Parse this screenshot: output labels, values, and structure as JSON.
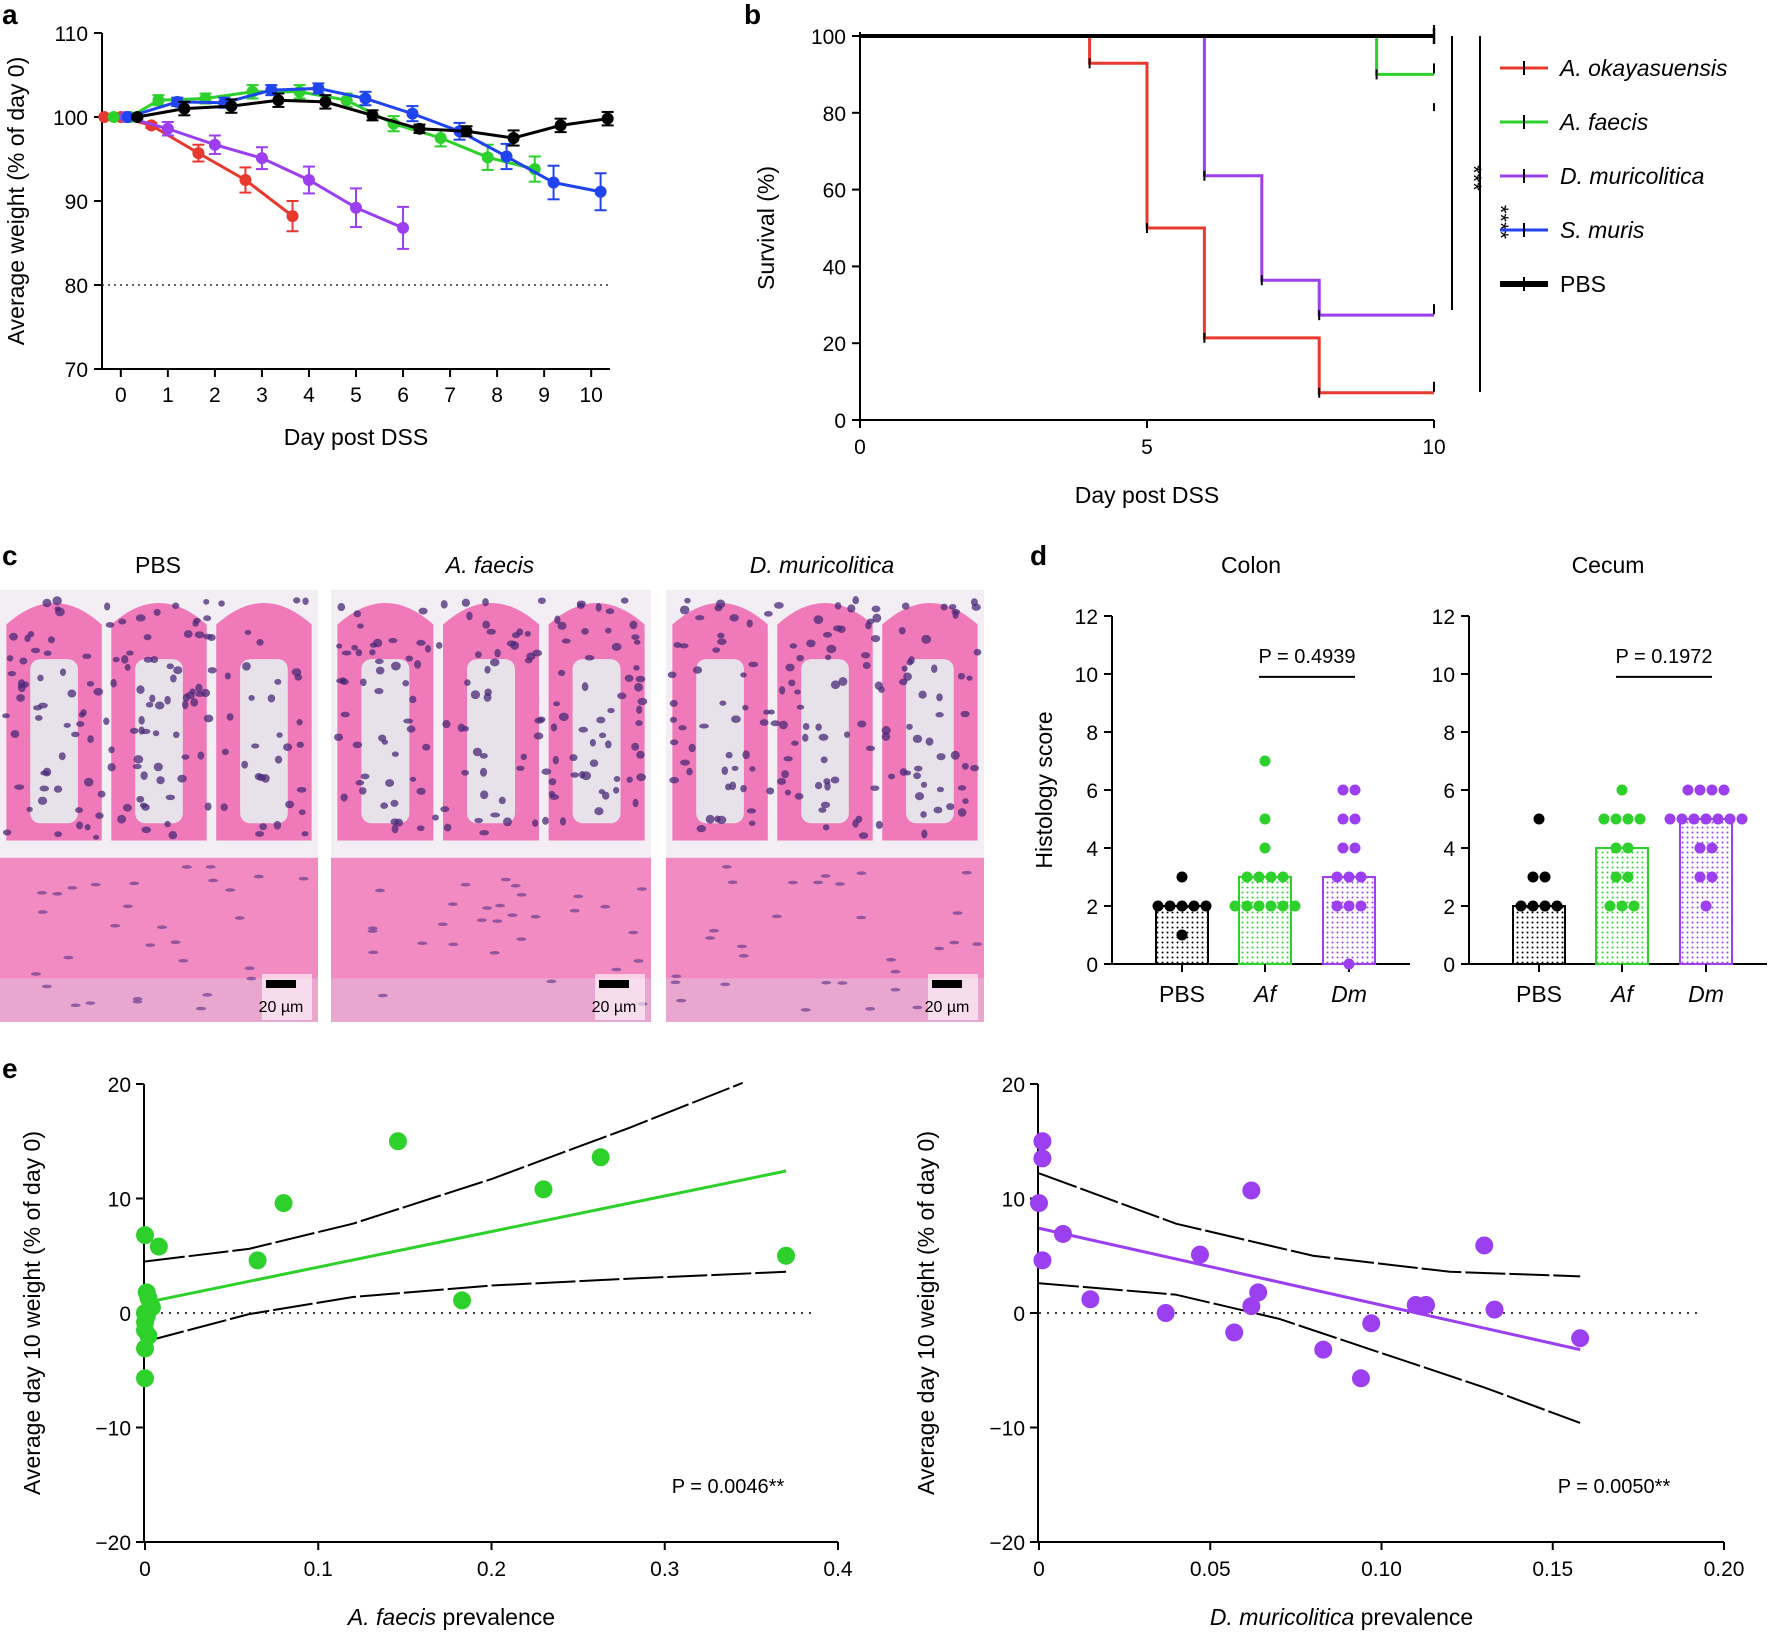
{
  "chart_data": [
    {
      "panel": "a",
      "type": "line",
      "xlabel": "Day post DSS",
      "ylabel": "Average weight (% of day 0)",
      "xlim": [
        -0.4,
        10.4
      ],
      "ylim": [
        70,
        110
      ],
      "xticks": [
        "0",
        "1",
        "2",
        "3",
        "4",
        "5",
        "6",
        "7",
        "8",
        "9",
        "10"
      ],
      "yticks": [
        "70",
        "80",
        "90",
        "100",
        "110"
      ],
      "reference_line": 80,
      "series": [
        {
          "name": "A. okayasuensis",
          "color": "#e8392f",
          "x": [
            -0.35,
            0,
            0.65,
            1.65,
            2.65,
            3.65
          ],
          "y": [
            100,
            100,
            99,
            95.7,
            92.5,
            88.2
          ],
          "err": [
            0,
            0,
            0.3,
            1.0,
            1.5,
            1.8
          ]
        },
        {
          "name": "A. faecis",
          "color": "#2ed12c",
          "x": [
            -0.15,
            0.2,
            0.8,
            1.8,
            2.8,
            3.8,
            4.8,
            5.8,
            6.8,
            7.8,
            8.8
          ],
          "y": [
            100,
            100,
            102,
            102.2,
            103,
            103,
            102,
            99.2,
            97.5,
            95.2,
            93.8
          ],
          "err": [
            0,
            0.2,
            0.6,
            0.6,
            0.8,
            0.8,
            0.8,
            0.9,
            1.0,
            1.5,
            1.5
          ]
        },
        {
          "name": "D. muricolitica",
          "color": "#9b3ff0",
          "x": [
            0.1,
            1.0,
            2.0,
            3.0,
            4.0,
            5.0,
            6.0
          ],
          "y": [
            100,
            98.6,
            96.7,
            95.1,
            92.5,
            89.2,
            86.8
          ],
          "err": [
            0.2,
            0.8,
            1.1,
            1.3,
            1.6,
            2.3,
            2.5
          ]
        },
        {
          "name": "S. muris",
          "color": "#1f44f0",
          "x": [
            0.15,
            1.2,
            2.2,
            3.2,
            4.2,
            5.2,
            6.2,
            7.2,
            8.2,
            9.2,
            10.2
          ],
          "y": [
            100,
            101.8,
            101.7,
            103.2,
            103.4,
            102.2,
            100.4,
            98.3,
            95.3,
            92.2,
            91.1
          ],
          "err": [
            0.2,
            0.5,
            0.6,
            0.6,
            0.6,
            0.8,
            0.9,
            1.0,
            1.5,
            2.0,
            2.2
          ]
        },
        {
          "name": "PBS",
          "color": "#000000",
          "x": [
            0.35,
            1.35,
            2.35,
            3.35,
            4.35,
            5.35,
            6.35,
            7.35,
            8.35,
            9.35,
            10.35
          ],
          "y": [
            100,
            101,
            101.3,
            102,
            101.8,
            100.2,
            98.6,
            98.3,
            97.5,
            99,
            99.8
          ],
          "err": [
            0.2,
            0.8,
            0.8,
            0.8,
            0.8,
            0.6,
            0.5,
            0.6,
            0.9,
            0.8,
            0.8
          ]
        }
      ]
    },
    {
      "panel": "b",
      "type": "line",
      "subtype": "kaplan-meier",
      "xlabel": "Day post DSS",
      "ylabel": "Survival (%)",
      "xlim": [
        0,
        10
      ],
      "ylim": [
        0,
        100
      ],
      "xticks": [
        "0",
        "5",
        "10"
      ],
      "yticks": [
        "0",
        "20",
        "40",
        "60",
        "80",
        "100"
      ],
      "series": [
        {
          "name": "A. okayasuensis",
          "color": "#e8392f",
          "steps": [
            [
              0,
              100
            ],
            [
              4,
              92.9
            ],
            [
              5,
              50
            ],
            [
              6,
              21.4
            ],
            [
              8,
              7.1
            ],
            [
              10,
              7.1
            ]
          ]
        },
        {
          "name": "A. faecis",
          "color": "#2ed12c",
          "steps": [
            [
              0,
              100
            ],
            [
              9,
              90
            ],
            [
              10,
              90
            ]
          ]
        },
        {
          "name": "D. muricolitica",
          "color": "#9b3ff0",
          "steps": [
            [
              0,
              100
            ],
            [
              6,
              63.6
            ],
            [
              7,
              36.4
            ],
            [
              8,
              27.3
            ],
            [
              10,
              27.3
            ]
          ]
        },
        {
          "name": "S. muris",
          "color": "#1f44f0",
          "steps": [
            [
              0,
              100
            ],
            [
              10,
              100
            ]
          ]
        },
        {
          "name": "PBS",
          "color": "#000000",
          "steps": [
            [
              0,
              100
            ],
            [
              10,
              100
            ]
          ]
        }
      ],
      "significance": [
        "***",
        "****"
      ],
      "legend": [
        "A. okayasuensis",
        "A. faecis",
        "D. muricolitica",
        "S. muris",
        "PBS"
      ]
    },
    {
      "panel": "d",
      "type": "bar",
      "subtype": "dot-bar",
      "ylabel": "Histology score",
      "ylim": [
        0,
        12
      ],
      "yticks": [
        "0",
        "2",
        "4",
        "6",
        "8",
        "10",
        "12"
      ],
      "categories": [
        "PBS",
        "Af",
        "Dm"
      ],
      "subplots": [
        {
          "title": "Colon",
          "p_label": "P = 0.4939",
          "bar_values": [
            2,
            3,
            3
          ],
          "points": [
            [
              2,
              2,
              2,
              2,
              2,
              1,
              3
            ],
            [
              2,
              2,
              2,
              2,
              2,
              2,
              3,
              3,
              3,
              3,
              4,
              5,
              7
            ],
            [
              0,
              2,
              2,
              2,
              3,
              3,
              3,
              4,
              4,
              5,
              5,
              6,
              6
            ]
          ]
        },
        {
          "title": "Cecum",
          "p_label": "P = 0.1972",
          "bar_values": [
            2,
            4,
            5
          ],
          "points": [
            [
              2,
              2,
              2,
              2,
              3,
              3,
              5
            ],
            [
              2,
              2,
              2,
              3,
              3,
              4,
              4,
              5,
              5,
              5,
              5,
              6
            ],
            [
              2,
              3,
              3,
              4,
              4,
              5,
              5,
              5,
              5,
              5,
              5,
              5,
              6,
              6,
              6,
              6
            ]
          ]
        }
      ],
      "colors": [
        "#000000",
        "#2ed12c",
        "#9b3ff0"
      ]
    },
    {
      "panel": "e-left",
      "type": "scatter",
      "xlabel": "A. faecis prevalence",
      "ylabel": "Average day 10 weight (% of day 0)",
      "xlim": [
        0,
        0.4
      ],
      "ylim": [
        -20,
        20
      ],
      "xticks": [
        "0",
        "0.1",
        "0.2",
        "0.3",
        "0.4"
      ],
      "yticks": [
        "−20",
        "−10",
        "0",
        "10",
        "20"
      ],
      "p_label": "P = 0.0046**",
      "color": "#2ed12c",
      "points": [
        [
          0,
          6.8
        ],
        [
          0.008,
          5.8
        ],
        [
          0.001,
          1.8
        ],
        [
          0.002,
          1.3
        ],
        [
          0.004,
          0.5
        ],
        [
          0,
          0
        ],
        [
          0.001,
          -0.3
        ],
        [
          0,
          -0.8
        ],
        [
          0,
          -1.5
        ],
        [
          0.002,
          -2.0
        ],
        [
          0,
          -3.1
        ],
        [
          0,
          -5.7
        ],
        [
          0.065,
          4.6
        ],
        [
          0.08,
          9.6
        ],
        [
          0.146,
          15
        ],
        [
          0.183,
          1.1
        ],
        [
          0.23,
          10.8
        ],
        [
          0.263,
          13.6
        ],
        [
          0.37,
          5.0
        ]
      ],
      "fit": [
        [
          0,
          0.9
        ],
        [
          0.37,
          12.4
        ]
      ],
      "ci_upper": [
        [
          0,
          4.5
        ],
        [
          0.06,
          5.6
        ],
        [
          0.12,
          7.8
        ],
        [
          0.2,
          11.7
        ],
        [
          0.28,
          16.2
        ],
        [
          0.345,
          20.1
        ]
      ],
      "ci_lower": [
        [
          0,
          -2.5
        ],
        [
          0.06,
          -0.1
        ],
        [
          0.12,
          1.4
        ],
        [
          0.2,
          2.4
        ],
        [
          0.28,
          3.0
        ],
        [
          0.37,
          3.6
        ]
      ]
    },
    {
      "panel": "e-right",
      "type": "scatter",
      "xlabel": "D. muricolitica prevalence",
      "ylabel": "Average day 10 weight (% of day 0)",
      "xlim": [
        0,
        0.2
      ],
      "ylim": [
        -20,
        20
      ],
      "xticks": [
        "0",
        "0.05",
        "0.10",
        "0.15",
        "0.20"
      ],
      "yticks": [
        "−20",
        "−10",
        "0",
        "10",
        "20"
      ],
      "p_label": "P = 0.0050**",
      "color": "#9b3ff0",
      "points": [
        [
          0.001,
          15
        ],
        [
          0.001,
          13.5
        ],
        [
          0,
          9.6
        ],
        [
          0.001,
          4.6
        ],
        [
          0.007,
          6.9
        ],
        [
          0.015,
          1.2
        ],
        [
          0.037,
          0
        ],
        [
          0.047,
          5.1
        ],
        [
          0.057,
          -1.7
        ],
        [
          0.062,
          10.7
        ],
        [
          0.062,
          0.6
        ],
        [
          0.064,
          1.8
        ],
        [
          0.083,
          -3.2
        ],
        [
          0.094,
          -5.7
        ],
        [
          0.097,
          -0.9
        ],
        [
          0.11,
          0.7
        ],
        [
          0.113,
          0.7
        ],
        [
          0.13,
          5.9
        ],
        [
          0.133,
          0.3
        ],
        [
          0.158,
          -2.2
        ]
      ],
      "fit": [
        [
          0,
          7.4
        ],
        [
          0.158,
          -3.2
        ]
      ],
      "ci_upper": [
        [
          0,
          12.2
        ],
        [
          0.04,
          7.8
        ],
        [
          0.08,
          5.0
        ],
        [
          0.12,
          3.6
        ],
        [
          0.158,
          3.2
        ]
      ],
      "ci_lower": [
        [
          0,
          2.6
        ],
        [
          0.04,
          1.6
        ],
        [
          0.07,
          -0.5
        ],
        [
          0.1,
          -3.5
        ],
        [
          0.13,
          -6.5
        ],
        [
          0.158,
          -9.6
        ]
      ]
    }
  ],
  "panel_labels": {
    "a": "a",
    "b": "b",
    "c": "c",
    "d": "d",
    "e": "e"
  },
  "histology": {
    "titles": [
      "PBS",
      "A. faecis",
      "D. muricolitica"
    ],
    "scale_bar": "20 µm"
  },
  "colors": {
    "red": "#e8392f",
    "green": "#2ed12c",
    "purple": "#9b3ff0",
    "blue": "#1f44f0",
    "black": "#000000",
    "tissue_pink": "#f07ab9",
    "nuclei": "#4a2a78"
  }
}
